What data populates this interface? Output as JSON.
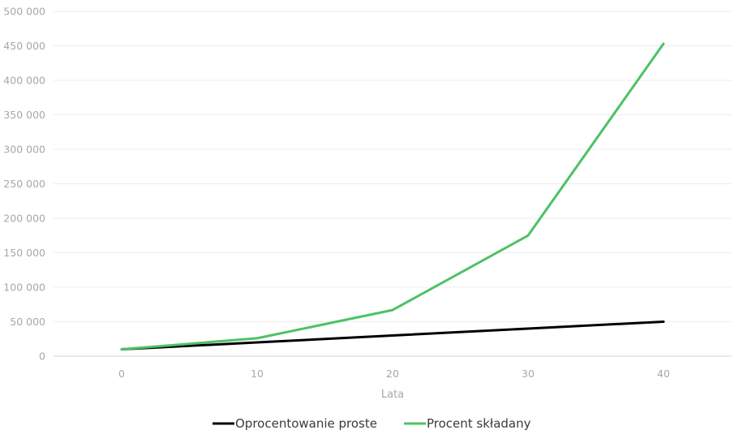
{
  "chart_data": {
    "type": "line",
    "title": "",
    "xlabel": "Lata",
    "ylabel": "",
    "x": [
      0,
      10,
      20,
      30,
      40
    ],
    "xticks": [
      "0",
      "10",
      "20",
      "30",
      "40"
    ],
    "yticks": [
      "0",
      "50 000",
      "100 000",
      "150 000",
      "200 000",
      "250 000",
      "300 000",
      "350 000",
      "400 000",
      "450 000",
      "500 000"
    ],
    "ylim": [
      0,
      500000
    ],
    "grid": true,
    "legend_position": "bottom",
    "series": [
      {
        "name": "Oprocentowanie proste",
        "color": "#000000",
        "values": [
          10000,
          20000,
          30000,
          40000,
          50000
        ]
      },
      {
        "name": "Procent składany",
        "color": "#4cc266",
        "values": [
          10000,
          26000,
          67000,
          175000,
          453000
        ]
      }
    ]
  }
}
